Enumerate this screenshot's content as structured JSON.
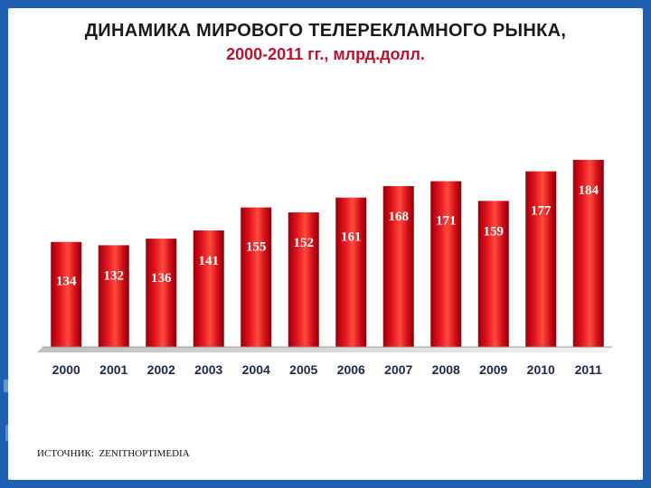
{
  "title": {
    "line1": "ДИНАМИКА МИРОВОГО ТЕЛЕРЕКЛАМНОГО РЫНКА,",
    "line2": "2000-2011 гг., млрд.долл."
  },
  "source": "ИСТОЧНИК:  ZENITHOPTIMEDIA",
  "colors": {
    "bar": "#e0121e",
    "bar_dark": "#8e0008",
    "bar_light": "#ff5a4a",
    "title_main": "#1a1a1a",
    "title_sub": "#c0102a",
    "frame": "#1f5fb3"
  },
  "chart_data": {
    "type": "bar",
    "title": "ДИНАМИКА МИРОВОГО ТЕЛЕРЕКЛАМНОГО РЫНКА, 2000-2011 гг., млрд.долл.",
    "xlabel": "",
    "ylabel": "",
    "categories": [
      "2000",
      "2001",
      "2002",
      "2003",
      "2004",
      "2005",
      "2006",
      "2007",
      "2008",
      "2009",
      "2010",
      "2011"
    ],
    "values": [
      134,
      132,
      136,
      141,
      155,
      152,
      161,
      168,
      171,
      159,
      177,
      184
    ],
    "ylim": [
      70,
      190
    ],
    "grid": false,
    "legend": "none"
  }
}
